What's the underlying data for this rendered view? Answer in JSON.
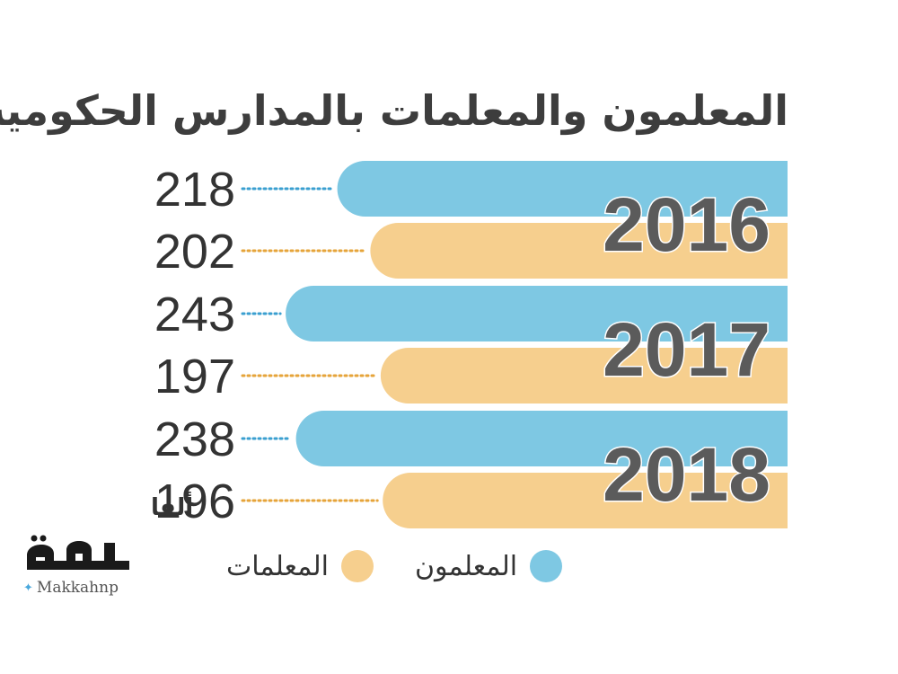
{
  "chart_data": {
    "type": "bar",
    "orientation": "horizontal",
    "title": "المعلمون والمعلمات بالمدارس الحكومية",
    "categories": [
      "2016",
      "2017",
      "2018"
    ],
    "series": [
      {
        "name": "المعلمون",
        "values": [
          218,
          243,
          238
        ],
        "color": "#7ec8e3"
      },
      {
        "name": "المعلمات",
        "values": [
          202,
          197,
          196
        ],
        "color": "#f6cf8e"
      }
    ],
    "value_labels": [
      "218",
      "202",
      "243",
      "197",
      "238",
      "196"
    ],
    "unit_label": "ألفا",
    "legend_position": "bottom",
    "grid": false
  },
  "logo": {
    "wordmark": "مكة",
    "handle": "Makkahnp",
    "icon": "twitter-bird-icon",
    "color": "#1a1a1a"
  }
}
